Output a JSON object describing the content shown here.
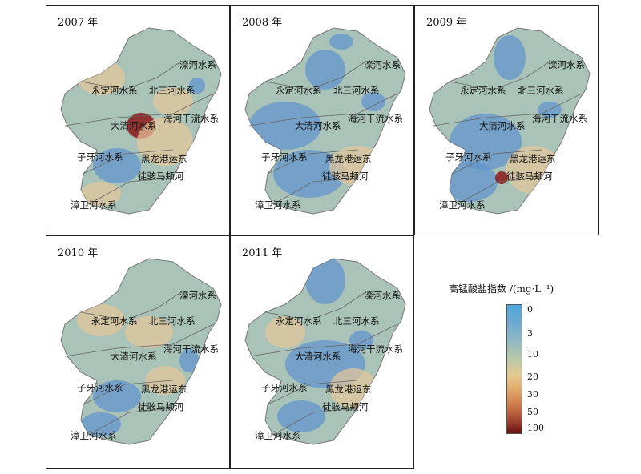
{
  "panels": [
    {
      "year": "2007 年"
    },
    {
      "year": "2008 年"
    },
    {
      "year": "2009 年"
    },
    {
      "year": "2010 年"
    },
    {
      "year": "2011 年"
    }
  ],
  "regions": {
    "luanhe": "滦河水系",
    "yongdinghe": "永定河水系",
    "beisanhe": "北三河水系",
    "haihe": "海河干流水系",
    "daqinghe": "大清河水系",
    "ziyahe": "子牙河水系",
    "heilonggang": "黑龙港运东",
    "tuhai": "徒骇马颊河",
    "zhangwei": "漳卫河水系"
  },
  "legend": {
    "title": "高锰酸盐指数 /(mg·L⁻¹)",
    "ticks": [
      "0",
      "3",
      "10",
      "20",
      "30",
      "50",
      "100"
    ]
  },
  "colors": {
    "base": "#a9c3b8",
    "blue": "#5f93cf",
    "orange": "#e7c79a",
    "dark": "#8b1a1a"
  }
}
